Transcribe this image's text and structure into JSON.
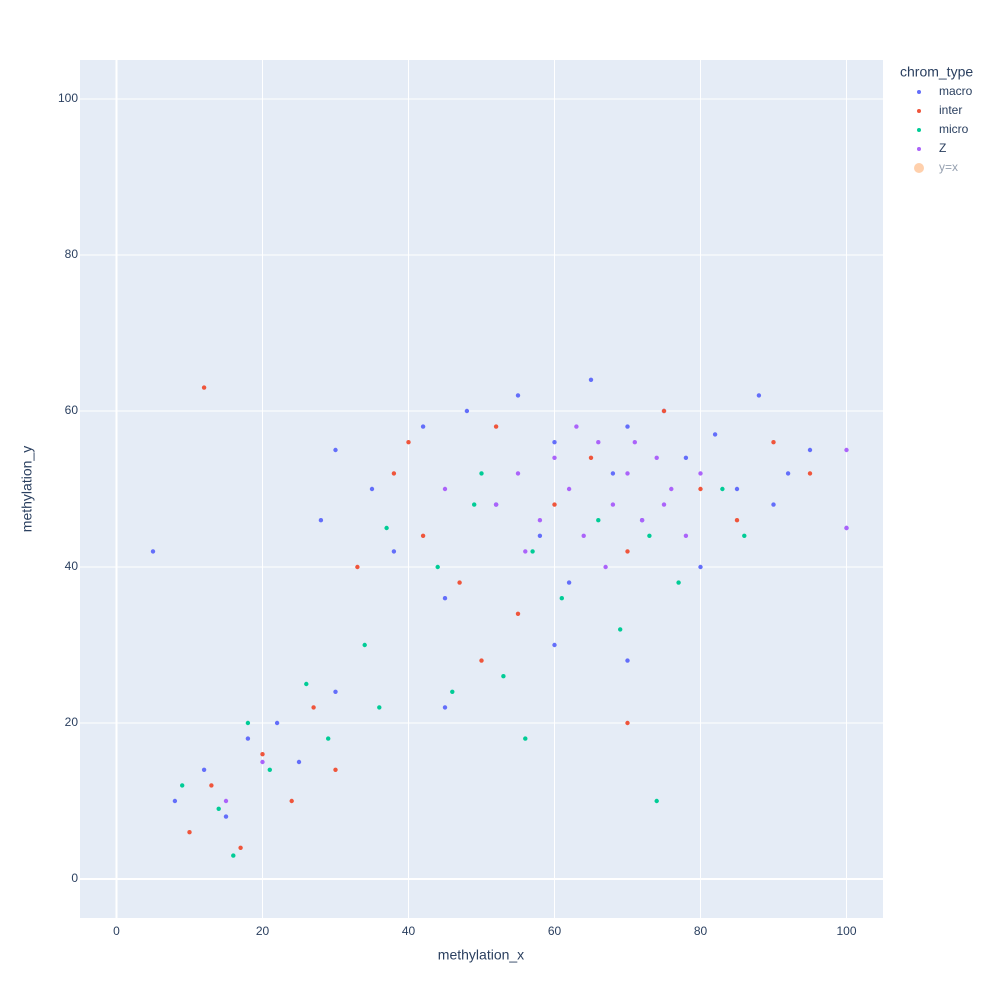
{
  "chart_data": {
    "type": "scatter",
    "xlabel": "methylation_x",
    "ylabel": "methylation_y",
    "xlim": [
      -5,
      105
    ],
    "ylim": [
      -5,
      105
    ],
    "xticks": [
      0,
      20,
      40,
      60,
      80,
      100
    ],
    "yticks": [
      0,
      20,
      40,
      60,
      80,
      100
    ],
    "grid": true,
    "legend_title": "chrom_type",
    "legend_position": "right",
    "series": [
      {
        "name": "macro",
        "color": "#636efa",
        "x": [
          8,
          12,
          15,
          18,
          22,
          25,
          28,
          30,
          35,
          38,
          42,
          45,
          48,
          52,
          55,
          58,
          60,
          62,
          65,
          68,
          70,
          72,
          75,
          78,
          80,
          82,
          85,
          88,
          90,
          92,
          95,
          100,
          5,
          45,
          60,
          70,
          30
        ],
        "y": [
          10,
          14,
          8,
          18,
          20,
          15,
          46,
          55,
          50,
          42,
          58,
          36,
          60,
          48,
          62,
          44,
          56,
          38,
          64,
          52,
          58,
          46,
          60,
          54,
          40,
          57,
          50,
          62,
          48,
          52,
          55,
          45,
          42,
          22,
          30,
          28,
          24
        ]
      },
      {
        "name": "inter",
        "color": "#ef553b",
        "x": [
          10,
          13,
          17,
          20,
          24,
          27,
          33,
          38,
          42,
          47,
          52,
          55,
          60,
          65,
          70,
          75,
          80,
          85,
          90,
          95,
          12,
          30,
          50,
          70,
          40
        ],
        "y": [
          6,
          12,
          4,
          16,
          10,
          22,
          40,
          52,
          44,
          38,
          58,
          34,
          48,
          54,
          42,
          60,
          50,
          46,
          56,
          52,
          63,
          14,
          28,
          20,
          56
        ]
      },
      {
        "name": "micro",
        "color": "#00cc96",
        "x": [
          9,
          14,
          18,
          21,
          26,
          29,
          34,
          37,
          44,
          49,
          50,
          53,
          57,
          61,
          66,
          69,
          73,
          77,
          83,
          86,
          16,
          36,
          56,
          74,
          46
        ],
        "y": [
          12,
          9,
          20,
          14,
          25,
          18,
          30,
          45,
          40,
          48,
          52,
          26,
          42,
          36,
          46,
          32,
          44,
          38,
          50,
          44,
          3,
          22,
          18,
          10,
          24
        ]
      },
      {
        "name": "Z",
        "color": "#ab63fa",
        "x": [
          52,
          55,
          58,
          60,
          62,
          64,
          66,
          68,
          70,
          72,
          74,
          76,
          78,
          80,
          56,
          63,
          67,
          71,
          75,
          45,
          100,
          100,
          20,
          15
        ],
        "y": [
          48,
          52,
          46,
          54,
          50,
          44,
          56,
          48,
          52,
          46,
          54,
          50,
          44,
          52,
          42,
          58,
          40,
          56,
          48,
          50,
          55,
          45,
          15,
          10
        ]
      },
      {
        "name": "y=x",
        "color": "#ffa15a",
        "visible": "legendonly"
      }
    ]
  }
}
